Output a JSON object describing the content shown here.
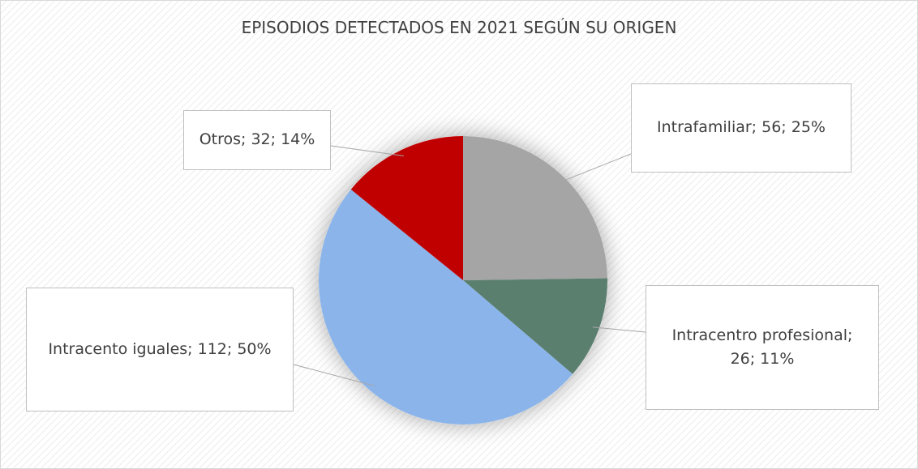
{
  "chart_data": {
    "type": "pie",
    "title": "EPISODIOS DETECTADOS EN 2021 SEGÚN SU ORIGEN",
    "values": [
      56,
      26,
      112,
      32
    ],
    "value_labels": [
      "Intrafamiliar; 56; 25%",
      "Intracentro profesional; 26; 11%",
      "Intracento iguales; 112; 50%",
      "Otros; 32; 14%"
    ],
    "colors": [
      "#a5a5a5",
      "#5b7f6f",
      "#8ab4ea",
      "#c00000"
    ]
  }
}
